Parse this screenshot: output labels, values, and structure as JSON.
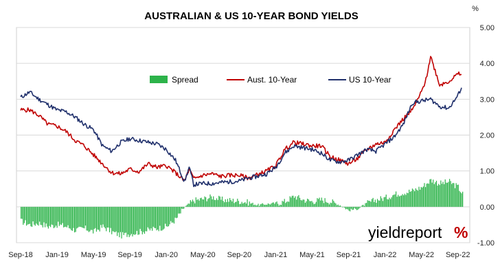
{
  "chart_data": {
    "type": "line",
    "title": "AUSTRALIAN & US 10-YEAR BOND YIELDS",
    "y_unit": "%",
    "ylim": [
      -1.0,
      5.0
    ],
    "y_ticks": [
      "5.00",
      "4.00",
      "3.00",
      "2.00",
      "1.00",
      "0.00",
      "-1.00"
    ],
    "y_tick_values": [
      5,
      4,
      3,
      2,
      1,
      0,
      -1
    ],
    "x_ticks": [
      "Sep-18",
      "Jan-19",
      "May-19",
      "Sep-19",
      "Jan-20",
      "May-20",
      "Sep-20",
      "Jan-21",
      "May-21",
      "Sep-21",
      "Jan-22",
      "May-22",
      "Sep-22"
    ],
    "x_tick_months": [
      0,
      4,
      8,
      12,
      16,
      20,
      24,
      28,
      32,
      36,
      40,
      44,
      48
    ],
    "x_domain_months": [
      0,
      48.7
    ],
    "grid": true,
    "legend_position": "top-center",
    "legend": [
      "Spread",
      "Aust. 10-Year",
      "US 10-Year"
    ],
    "colors": {
      "Spread": "#2db34a",
      "Aust. 10-Year": "#c00000",
      "US 10-Year": "#1f2f6b"
    },
    "series": [
      {
        "name": "Aust. 10-Year",
        "kind": "line",
        "x_months": [
          0,
          1,
          2,
          3,
          4,
          5,
          6,
          7,
          8,
          9,
          10,
          11,
          12,
          13,
          14,
          15,
          16,
          17,
          18,
          18.5,
          19,
          20,
          21,
          22,
          23,
          24,
          25,
          26,
          27,
          28,
          29,
          30,
          31,
          32,
          33,
          34,
          35,
          36,
          37,
          38,
          39,
          40,
          41,
          42,
          43,
          44,
          44.5,
          45,
          46,
          47,
          48,
          48.5
        ],
        "values": [
          2.7,
          2.7,
          2.55,
          2.3,
          2.25,
          2.1,
          1.85,
          1.7,
          1.45,
          1.2,
          0.95,
          0.92,
          1.05,
          0.98,
          1.2,
          1.1,
          1.15,
          0.95,
          0.72,
          1.05,
          0.78,
          0.88,
          0.92,
          0.85,
          0.88,
          0.88,
          0.8,
          0.9,
          1.0,
          1.15,
          1.6,
          1.8,
          1.75,
          1.7,
          1.7,
          1.4,
          1.3,
          1.2,
          1.35,
          1.6,
          1.75,
          1.8,
          2.15,
          2.45,
          2.7,
          3.2,
          3.55,
          4.2,
          3.4,
          3.5,
          3.7,
          3.7
        ]
      },
      {
        "name": "US 10-Year",
        "kind": "line",
        "x_months": [
          0,
          1,
          2,
          3,
          4,
          5,
          6,
          7,
          8,
          9,
          10,
          11,
          12,
          13,
          14,
          15,
          16,
          17,
          18,
          18.5,
          19,
          20,
          21,
          22,
          23,
          24,
          25,
          26,
          27,
          28,
          29,
          30,
          31,
          32,
          33,
          34,
          35,
          36,
          37,
          38,
          39,
          40,
          41,
          42,
          43,
          44,
          45,
          46,
          47,
          48,
          48.5
        ],
        "values": [
          3.05,
          3.2,
          3.0,
          2.85,
          2.7,
          2.65,
          2.5,
          2.3,
          2.15,
          1.7,
          1.55,
          1.8,
          1.9,
          1.85,
          1.8,
          1.75,
          1.6,
          1.3,
          0.7,
          1.1,
          0.62,
          0.65,
          0.65,
          0.68,
          0.7,
          0.72,
          0.8,
          0.85,
          0.92,
          1.1,
          1.5,
          1.7,
          1.65,
          1.6,
          1.5,
          1.3,
          1.25,
          1.3,
          1.45,
          1.6,
          1.55,
          1.75,
          1.95,
          2.3,
          2.9,
          2.95,
          3.0,
          2.8,
          2.75,
          3.1,
          3.4
        ]
      },
      {
        "name": "Spread",
        "kind": "bar",
        "x_months": [
          0,
          1,
          2,
          3,
          4,
          5,
          6,
          7,
          8,
          9,
          10,
          11,
          12,
          13,
          14,
          15,
          16,
          17,
          18,
          19,
          20,
          21,
          22,
          23,
          24,
          25,
          26,
          27,
          28,
          29,
          30,
          31,
          32,
          33,
          34,
          35,
          36,
          37,
          38,
          39,
          40,
          41,
          42,
          43,
          44,
          45,
          46,
          47,
          48,
          48.5
        ],
        "values": [
          -0.4,
          -0.5,
          -0.45,
          -0.55,
          -0.5,
          -0.55,
          -0.65,
          -0.6,
          -0.7,
          -0.55,
          -0.7,
          -0.8,
          -0.75,
          -0.7,
          -0.65,
          -0.6,
          -0.55,
          -0.35,
          0.0,
          0.18,
          0.22,
          0.28,
          0.2,
          0.18,
          0.16,
          0.12,
          0.05,
          0.08,
          0.1,
          0.15,
          0.3,
          0.2,
          0.15,
          0.2,
          0.15,
          0.05,
          -0.1,
          -0.05,
          0.1,
          0.2,
          0.25,
          0.35,
          0.4,
          0.45,
          0.55,
          0.75,
          0.65,
          0.7,
          0.55,
          0.35
        ]
      }
    ]
  },
  "logo": {
    "text_main": "yieldreport",
    "text_symbol": "%"
  }
}
